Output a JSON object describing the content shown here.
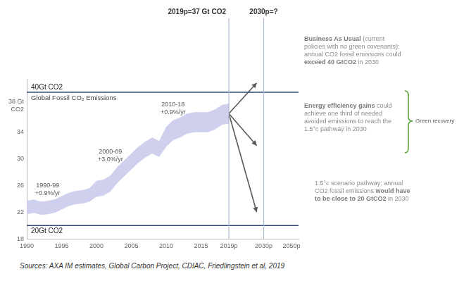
{
  "chart_data": {
    "type": "line",
    "title": "Global Fossil CO₂ Emissions",
    "categories": [
      "1990",
      null,
      null,
      null,
      null,
      "1995",
      null,
      null,
      null,
      null,
      "2000",
      null,
      null,
      null,
      null,
      "2005",
      null,
      null,
      null,
      null,
      "2010",
      null,
      null,
      null,
      null,
      "2015",
      null,
      null,
      null,
      "2019p",
      null,
      null,
      null,
      null,
      "2030p",
      null,
      null,
      null,
      "2050p",
      null
    ],
    "ylim": [
      18,
      42
    ],
    "yticks": [
      18,
      22,
      26,
      30,
      34,
      {
        "value": 38,
        "label": "38 Gt CO2"
      }
    ],
    "grid": false,
    "series": [
      {
        "color": "#3c3c3c",
        "values": [
          22.7,
          22.9,
          22.6,
          22.7,
          22.9,
          23.4,
          23.9,
          24.2,
          24.3,
          24.6,
          25.5,
          25.7,
          26.3,
          27.6,
          28.6,
          29.6,
          30.6,
          31.4,
          32.0,
          31.5,
          33.3,
          34.3,
          34.7,
          35.3,
          35.5,
          35.5,
          35.5,
          35.9,
          36.6,
          36.8,
          null,
          null,
          null,
          null,
          null,
          null,
          null,
          null,
          null,
          null
        ],
        "band_low": [
          21.7,
          21.9,
          21.6,
          21.7,
          21.9,
          22.4,
          22.9,
          23.2,
          23.3,
          23.6,
          24.3,
          24.5,
          25.1,
          26.4,
          27.4,
          28.4,
          29.4,
          30.2,
          30.8,
          30.3,
          31.8,
          32.8,
          33.2,
          33.8,
          34.0,
          34.0,
          34.0,
          34.4,
          35.1,
          35.3,
          null,
          null,
          null,
          null,
          null,
          null,
          null,
          null,
          null,
          null
        ],
        "band_high": [
          23.7,
          23.9,
          23.6,
          23.7,
          23.9,
          24.4,
          24.9,
          25.2,
          25.3,
          25.6,
          26.7,
          26.9,
          27.5,
          28.8,
          29.8,
          30.8,
          31.8,
          32.6,
          33.2,
          32.7,
          34.8,
          35.8,
          36.2,
          36.8,
          37.0,
          37.0,
          37.0,
          37.4,
          38.1,
          38.3,
          null,
          null,
          null,
          null,
          null,
          null,
          null,
          null,
          null,
          null
        ],
        "band_color": "#cfcfee"
      },
      {
        "color": "#595959",
        "marker": "arrow",
        "values": [
          null,
          null,
          null,
          null,
          null,
          null,
          null,
          null,
          null,
          null,
          null,
          null,
          null,
          null,
          null,
          null,
          null,
          null,
          null,
          null,
          null,
          null,
          null,
          null,
          null,
          null,
          null,
          null,
          null,
          36.8,
          null,
          null,
          null,
          41.4,
          null,
          null,
          null,
          null,
          null,
          null
        ]
      },
      {
        "color": "#595959",
        "marker": "arrow",
        "values": [
          null,
          null,
          null,
          null,
          null,
          null,
          null,
          null,
          null,
          null,
          null,
          null,
          null,
          null,
          null,
          null,
          null,
          null,
          null,
          null,
          null,
          null,
          null,
          null,
          null,
          null,
          null,
          null,
          null,
          36.8,
          null,
          null,
          null,
          32.0,
          null,
          null,
          null,
          null,
          null,
          null
        ]
      },
      {
        "color": "#595959",
        "marker": "arrow",
        "values": [
          null,
          null,
          null,
          null,
          null,
          null,
          null,
          null,
          null,
          null,
          null,
          null,
          null,
          null,
          null,
          null,
          null,
          null,
          null,
          null,
          null,
          null,
          null,
          null,
          null,
          null,
          null,
          null,
          null,
          36.8,
          null,
          null,
          null,
          22.0,
          null,
          null,
          null,
          null,
          null,
          null
        ]
      }
    ],
    "reference_lines": {
      "y": [
        {
          "value": 40,
          "label": "40Gt CO2",
          "color": "#2f4a7a"
        },
        {
          "value": 20,
          "label": "20Gt CO2",
          "color": "#2f4a7a"
        }
      ],
      "x": [
        {
          "category": "2019p",
          "label": "2019p=37 Gt CO2",
          "color": "#a9b7d0"
        },
        {
          "category": "2030p",
          "label": "2030p=?",
          "color": "#a9b7d0"
        }
      ]
    },
    "annotations": [
      {
        "text": [
          "1990-99",
          "+0.9%/yr"
        ]
      },
      {
        "text": [
          "2000-09",
          "+3.0%/yr"
        ]
      },
      {
        "text": [
          "2010-18",
          "+0.9%/yr"
        ]
      }
    ],
    "scenario_notes": [
      [
        {
          "text": "Business As Usual",
          "bold": true
        },
        {
          "text": " (current policies with no green covenants): annual CO2 fossil emissions could "
        },
        {
          "text": "exceed 40 GtCO2",
          "bold": true
        },
        {
          "text": " in 2030"
        }
      ],
      [
        {
          "text": "Energy efficiency gains",
          "bold": true
        },
        {
          "text": " could achieve one third of needed avoided emissions to reach the 1.5°c pathway in 2030"
        }
      ],
      [
        {
          "text": "1.5°c scenario pathway: annual CO2 fossil emissions "
        },
        {
          "text": "would have to be close to 20 GtCO2",
          "bold": true
        },
        {
          "text": " in 2030"
        }
      ]
    ],
    "bracket_label": "Green recovery",
    "source": "Sources: AXA IM estimates, Global Carbon Project, CDIAC, Friedlingstein et al, 2019"
  }
}
